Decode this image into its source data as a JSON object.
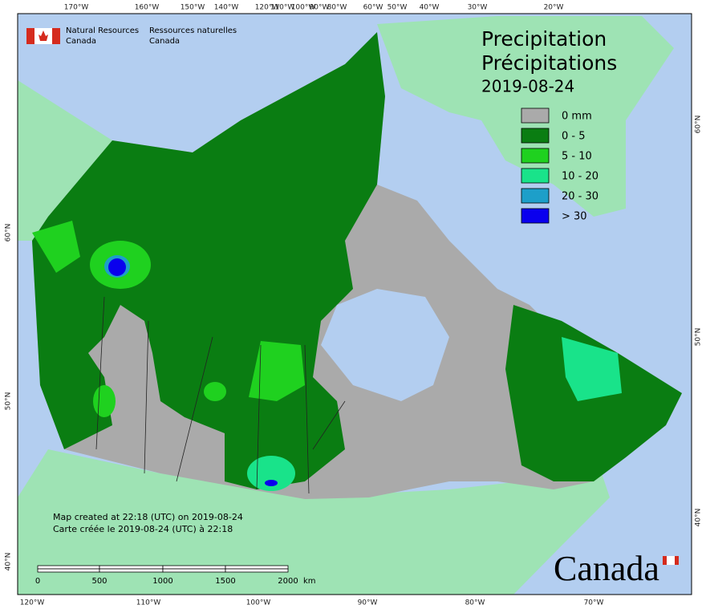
{
  "header": {
    "org_en": [
      "Natural Resources",
      "Canada"
    ],
    "org_fr": [
      "Ressources naturelles",
      "Canada"
    ]
  },
  "title": {
    "en": "Precipitation",
    "fr": "Précipitations",
    "date": "2019-08-24"
  },
  "legend": {
    "items": [
      {
        "label": "0 mm",
        "color": "#aaaaaa"
      },
      {
        "label": "0 - 5",
        "color": "#0a7d12"
      },
      {
        "label": "5 - 10",
        "color": "#1fd11f"
      },
      {
        "label": "10 - 20",
        "color": "#19e38a"
      },
      {
        "label": "20 - 30",
        "color": "#1d9fc9"
      },
      {
        "label": "> 30",
        "color": "#0a00ee"
      }
    ]
  },
  "notes": [
    "Map created at 22:18 (UTC) on 2019-08-24",
    "Carte créée le 2019-08-24 (UTC) à 22:18"
  ],
  "scale": {
    "labels": [
      "0",
      "500",
      "1000",
      "1500",
      "2000"
    ],
    "unit": "km"
  },
  "graticule": {
    "top": [
      "170°W",
      "160°W",
      "150°W",
      "140°W",
      "120°W",
      "110°W",
      "100°W",
      "90°W",
      "80°W",
      "60°W",
      "50°W",
      "40°W",
      "30°W",
      "20°W"
    ],
    "bottom": [
      "120°W",
      "110°W",
      "100°W",
      "90°W",
      "80°W",
      "70°W"
    ],
    "left": [
      "60°N",
      "50°N",
      "40°N"
    ],
    "right": [
      "60°N",
      "50°N",
      "40°N"
    ]
  },
  "wordmark": "Canada"
}
